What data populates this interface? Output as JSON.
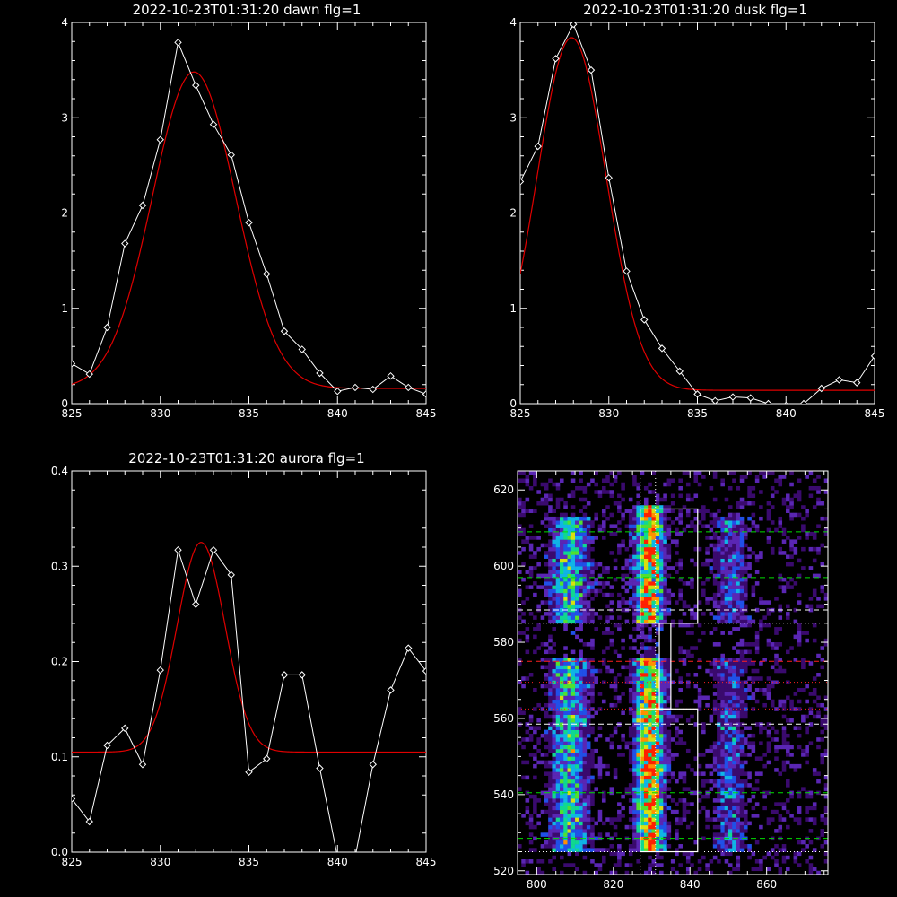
{
  "chart_data": [
    {
      "type": "line",
      "title": "2022-10-23T01:31:20 dawn flg=1",
      "xlim": [
        825,
        845
      ],
      "ylim": [
        0,
        4
      ],
      "xticks": [
        825,
        830,
        835,
        840,
        845
      ],
      "yticks": [
        0,
        1,
        2,
        3,
        4
      ],
      "xtick_labels": [
        "825",
        "830",
        "835",
        "840",
        "845"
      ],
      "ytick_labels": [
        "0",
        "1",
        "2",
        "3",
        "4"
      ],
      "series": [
        {
          "role": "observed",
          "color": "#ffffff",
          "marker": "diamond",
          "x": [
            825,
            826,
            827,
            828,
            829,
            830,
            831,
            832,
            833,
            834,
            835,
            836,
            837,
            838,
            839,
            840,
            841,
            842,
            843,
            844,
            845
          ],
          "y": [
            0.42,
            0.31,
            0.8,
            1.68,
            2.08,
            2.77,
            3.79,
            3.34,
            2.93,
            2.61,
            1.9,
            1.36,
            0.76,
            0.57,
            0.32,
            0.13,
            0.17,
            0.15,
            0.29,
            0.17,
            0.1
          ]
        },
        {
          "role": "gaussian-fit",
          "color": "#e00000",
          "fit": {
            "amplitude": 3.32,
            "center": 831.9,
            "sigma": 2.35,
            "offset": 0.16
          }
        }
      ]
    },
    {
      "type": "line",
      "title": "2022-10-23T01:31:20 dusk flg=1",
      "xlim": [
        825,
        845
      ],
      "ylim": [
        0,
        4
      ],
      "xticks": [
        825,
        830,
        835,
        840,
        845
      ],
      "yticks": [
        0,
        1,
        2,
        3,
        4
      ],
      "xtick_labels": [
        "825",
        "830",
        "835",
        "840",
        "845"
      ],
      "ytick_labels": [
        "0",
        "1",
        "2",
        "3",
        "4"
      ],
      "series": [
        {
          "role": "observed",
          "color": "#ffffff",
          "marker": "diamond",
          "x": [
            825,
            826,
            827,
            828,
            829,
            830,
            831,
            832,
            833,
            834,
            835,
            836,
            837,
            838,
            839,
            840,
            841,
            842,
            843,
            844,
            845
          ],
          "y": [
            2.33,
            2.7,
            3.62,
            3.98,
            3.5,
            2.37,
            1.39,
            0.88,
            0.58,
            0.34,
            0.1,
            0.03,
            0.07,
            0.06,
            0.0,
            -0.02,
            0.0,
            0.16,
            0.25,
            0.22,
            0.5
          ]
        },
        {
          "role": "gaussian-fit",
          "color": "#e00000",
          "fit": {
            "amplitude": 3.7,
            "center": 827.9,
            "sigma": 1.95,
            "offset": 0.14
          }
        }
      ]
    },
    {
      "type": "line",
      "title": "2022-10-23T01:31:20 aurora flg=1",
      "xlim": [
        825,
        845
      ],
      "ylim": [
        0,
        0.4
      ],
      "xticks": [
        825,
        830,
        835,
        840,
        845
      ],
      "yticks": [
        0,
        0.1,
        0.2,
        0.3,
        0.4
      ],
      "xtick_labels": [
        "825",
        "830",
        "835",
        "840",
        "845"
      ],
      "ytick_labels": [
        "0.0",
        "0.1",
        "0.2",
        "0.3",
        "0.4"
      ],
      "series": [
        {
          "role": "observed",
          "color": "#ffffff",
          "marker": "diamond",
          "x": [
            825,
            826,
            827,
            828,
            829,
            830,
            831,
            832,
            833,
            834,
            835,
            836,
            837,
            838,
            839,
            840,
            841,
            842,
            843,
            844,
            845
          ],
          "y": [
            0.056,
            0.032,
            0.112,
            0.13,
            0.092,
            0.191,
            0.317,
            0.26,
            0.317,
            0.291,
            0.084,
            0.098,
            0.186,
            0.186,
            0.088,
            -0.005,
            -0.005,
            0.092,
            0.17,
            0.214,
            0.19
          ]
        },
        {
          "role": "gaussian-fit",
          "color": "#e00000",
          "fit": {
            "amplitude": 0.22,
            "center": 832.3,
            "sigma": 1.35,
            "offset": 0.105
          }
        }
      ]
    },
    {
      "type": "heatmap",
      "title": "",
      "xlim": [
        795,
        876
      ],
      "ylim": [
        519,
        625
      ],
      "xticks": [
        800,
        820,
        840,
        860
      ],
      "yticks": [
        520,
        540,
        560,
        580,
        600,
        620
      ],
      "xtick_labels": [
        "800",
        "820",
        "840",
        "860"
      ],
      "ytick_labels": [
        "520",
        "540",
        "560",
        "580",
        "600",
        "620"
      ],
      "colorscale": [
        "#000000",
        "#3a0a6e",
        "#5a26b4",
        "#2050e8",
        "#10b4e6",
        "#10d890",
        "#50e030",
        "#d8e010",
        "#ff9000",
        "#ff2000",
        "#ffffff"
      ],
      "emission_bands": [
        {
          "x_center": 808,
          "x_width": 7,
          "y_range": [
            525,
            612
          ],
          "peak": 0.55
        },
        {
          "x_center": 829,
          "x_width": 5,
          "y_range": [
            525,
            615
          ],
          "peak": 0.95
        },
        {
          "x_center": 850,
          "x_width": 6,
          "y_range": [
            525,
            612
          ],
          "peak": 0.3
        }
      ],
      "boxes": [
        {
          "x": [
            827,
            842
          ],
          "y": [
            585,
            615
          ],
          "color": "#ffffff"
        },
        {
          "x": [
            832,
            835
          ],
          "y": [
            562.5,
            585
          ],
          "color": "#ffffff"
        },
        {
          "x": [
            827,
            842
          ],
          "y": [
            525,
            562.5
          ],
          "color": "#ffffff"
        }
      ],
      "hlines": [
        {
          "y": 615,
          "color": "#ffffff",
          "style": "dotted"
        },
        {
          "y": 609,
          "color": "#00dd00",
          "style": "dashed"
        },
        {
          "y": 597,
          "color": "#00dd00",
          "style": "dashed"
        },
        {
          "y": 588.5,
          "color": "#ffffff",
          "style": "dashed"
        },
        {
          "y": 585,
          "color": "#ffffff",
          "style": "dotted"
        },
        {
          "y": 575,
          "color": "#ff2020",
          "style": "dashed"
        },
        {
          "y": 569.5,
          "color": "#ff2020",
          "style": "dotted"
        },
        {
          "y": 562.5,
          "color": "#ff2020",
          "style": "dotted"
        },
        {
          "y": 558.5,
          "color": "#ffffff",
          "style": "dashed"
        },
        {
          "y": 540.5,
          "color": "#00dd00",
          "style": "dashed"
        },
        {
          "y": 528.5,
          "color": "#00dd00",
          "style": "dashed"
        },
        {
          "y": 525,
          "color": "#ffffff",
          "style": "dotted"
        }
      ],
      "vlines": [
        {
          "x": 827,
          "color": "#ffffff",
          "style": "dotted"
        },
        {
          "x": 831,
          "color": "#ffffff",
          "style": "dotted"
        }
      ]
    }
  ]
}
